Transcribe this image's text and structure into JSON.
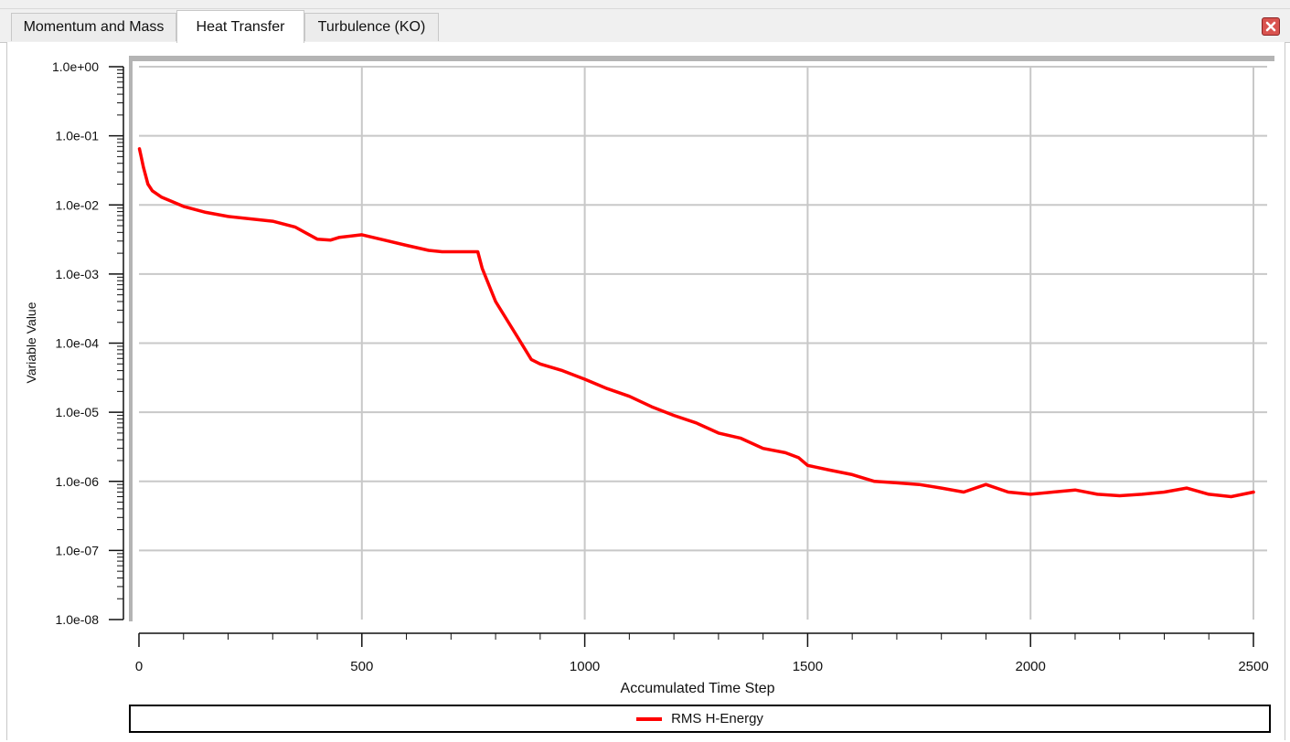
{
  "tabs": [
    {
      "label": "Momentum and Mass",
      "active": false
    },
    {
      "label": "Heat Transfer",
      "active": true
    },
    {
      "label": "Turbulence (KO)",
      "active": false
    }
  ],
  "colors": {
    "series": "#ff0000",
    "grid": "#c8c8c8",
    "close_button": "#d9534f"
  },
  "icons": {
    "close": "close-icon"
  },
  "chart_data": {
    "type": "line",
    "xlabel": "Accumulated Time Step",
    "ylabel": "Variable Value",
    "yscale": "log",
    "xlim": [
      0,
      2500
    ],
    "ylim": [
      1e-08,
      1
    ],
    "x_ticks": [
      "0",
      "500",
      "1000",
      "1500",
      "2000",
      "2500"
    ],
    "y_ticks": [
      "1.0e-08",
      "1.0e-07",
      "1.0e-06",
      "1.0e-05",
      "1.0e-04",
      "1.0e-03",
      "1.0e-02",
      "1.0e-01",
      "1.0e+00"
    ],
    "grid": true,
    "legend_position": "bottom",
    "series": [
      {
        "name": "RMS H-Energy",
        "x": [
          1,
          5,
          10,
          20,
          30,
          50,
          100,
          150,
          200,
          300,
          350,
          400,
          430,
          450,
          500,
          550,
          600,
          650,
          680,
          700,
          760,
          770,
          800,
          850,
          880,
          900,
          950,
          1000,
          1050,
          1100,
          1150,
          1200,
          1250,
          1300,
          1350,
          1400,
          1450,
          1480,
          1500,
          1550,
          1600,
          1650,
          1700,
          1750,
          1800,
          1850,
          1900,
          1950,
          2000,
          2050,
          2100,
          2150,
          2200,
          2250,
          2300,
          2350,
          2400,
          2450,
          2500
        ],
        "y": [
          0.065,
          0.05,
          0.035,
          0.02,
          0.016,
          0.013,
          0.0095,
          0.0078,
          0.0068,
          0.0058,
          0.0048,
          0.0032,
          0.0031,
          0.0034,
          0.0037,
          0.0031,
          0.0026,
          0.0022,
          0.0021,
          0.0021,
          0.0021,
          0.0012,
          0.0004,
          0.00012,
          5.8e-05,
          5e-05,
          4e-05,
          3e-05,
          2.2e-05,
          1.7e-05,
          1.2e-05,
          9e-06,
          7e-06,
          5e-06,
          4.2e-06,
          3e-06,
          2.6e-06,
          2.2e-06,
          1.7e-06,
          1.45e-06,
          1.25e-06,
          1e-06,
          9.5e-07,
          9e-07,
          8e-07,
          7e-07,
          9e-07,
          7e-07,
          6.5e-07,
          7e-07,
          7.5e-07,
          6.5e-07,
          6.2e-07,
          6.5e-07,
          7e-07,
          8e-07,
          6.5e-07,
          6e-07,
          7e-07
        ]
      }
    ]
  }
}
